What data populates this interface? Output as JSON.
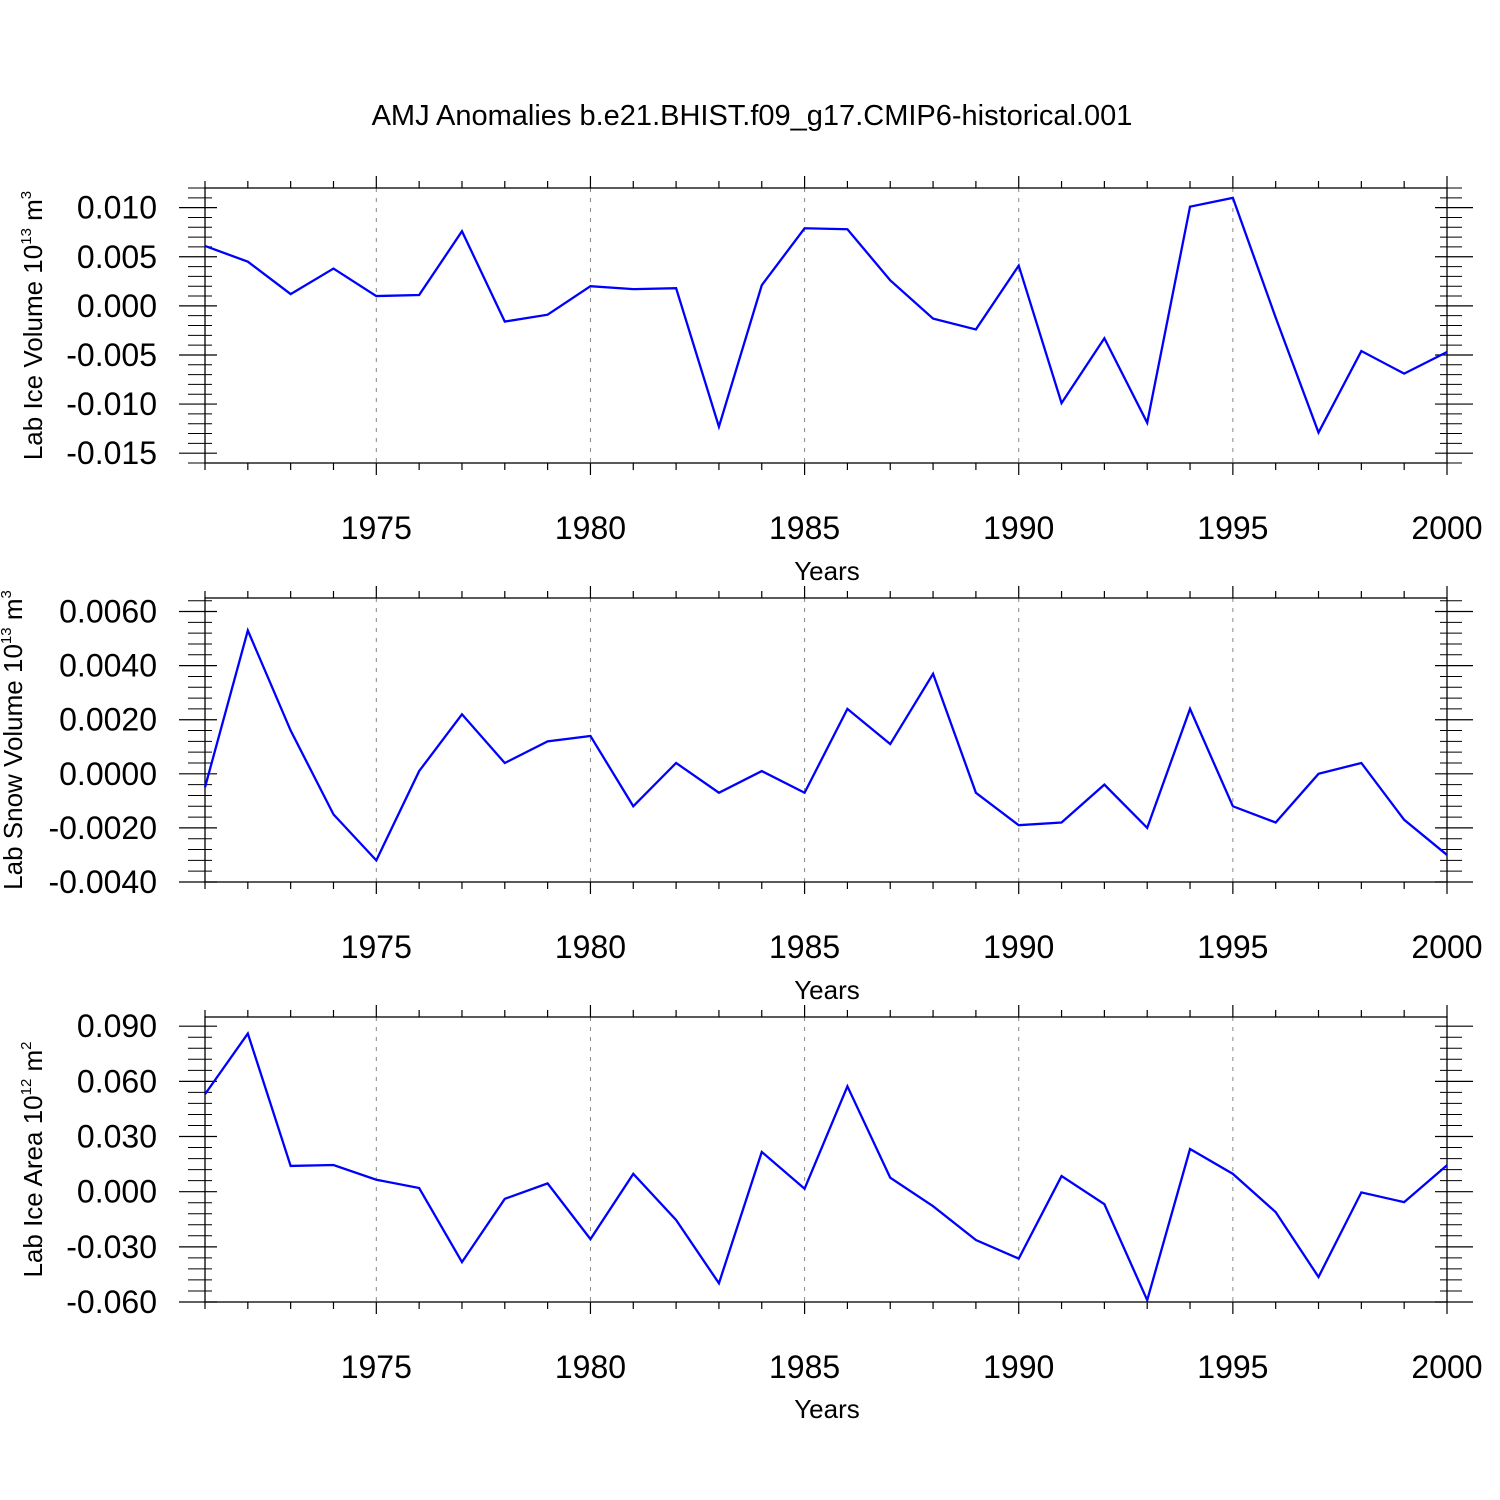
{
  "title": "AMJ Anomalies b.e21.BHIST.f09_g17.CMIP6-historical.001",
  "colors": {
    "line": "#0000ff",
    "axis": "#000000",
    "grid": "#888888"
  },
  "chart_data": [
    {
      "type": "line",
      "xlabel": "Years",
      "ylabel": {
        "base": "Lab Ice Volume 10",
        "exp": "13",
        "unit": " m",
        "unit_exp": "3"
      },
      "xlim": [
        1971,
        2000
      ],
      "ylim": [
        -0.016,
        0.012
      ],
      "xticks": [
        1975,
        1980,
        1985,
        1990,
        1995,
        2000
      ],
      "xtick_labels": [
        "1975",
        "1980",
        "1985",
        "1990",
        "1995",
        "2000"
      ],
      "yticks": [
        -0.015,
        -0.01,
        -0.005,
        0.0,
        0.005,
        0.01
      ],
      "ytick_labels": [
        "-0.015",
        "-0.010",
        "-0.005",
        "0.000",
        "0.005",
        "0.010"
      ],
      "grid": "vertical dashed at major x ticks",
      "x": [
        1971,
        1972,
        1973,
        1974,
        1975,
        1976,
        1977,
        1978,
        1979,
        1980,
        1981,
        1982,
        1983,
        1984,
        1985,
        1986,
        1987,
        1988,
        1989,
        1990,
        1991,
        1992,
        1993,
        1994,
        1995,
        1996,
        1997,
        1998,
        1999,
        2000
      ],
      "y": [
        0.0061,
        0.0045,
        0.0012,
        0.0038,
        0.001,
        0.0011,
        0.0076,
        -0.0016,
        -0.0009,
        0.002,
        0.0017,
        0.0018,
        -0.0123,
        0.0021,
        0.0079,
        0.0078,
        0.0026,
        -0.0013,
        -0.0024,
        0.0041,
        -0.0099,
        -0.0033,
        -0.0119,
        0.0101,
        0.011,
        -0.0012,
        -0.0129,
        -0.0046,
        -0.0069,
        -0.0047
      ]
    },
    {
      "type": "line",
      "xlabel": "Years",
      "ylabel": {
        "base": "Lab Snow Volume 10",
        "exp": "13",
        "unit": " m",
        "unit_exp": "3"
      },
      "xlim": [
        1971,
        2000
      ],
      "ylim": [
        -0.004,
        0.0065
      ],
      "xticks": [
        1975,
        1980,
        1985,
        1990,
        1995,
        2000
      ],
      "xtick_labels": [
        "1975",
        "1980",
        "1985",
        "1990",
        "1995",
        "2000"
      ],
      "yticks": [
        -0.004,
        -0.002,
        0.0,
        0.002,
        0.004,
        0.006
      ],
      "ytick_labels": [
        "-0.0040",
        "-0.0020",
        "0.0000",
        "0.0020",
        "0.0040",
        "0.0060"
      ],
      "grid": "vertical dashed at major x ticks",
      "x": [
        1971,
        1972,
        1973,
        1974,
        1975,
        1976,
        1977,
        1978,
        1979,
        1980,
        1981,
        1982,
        1983,
        1984,
        1985,
        1986,
        1987,
        1988,
        1989,
        1990,
        1991,
        1992,
        1993,
        1994,
        1995,
        1996,
        1997,
        1998,
        1999,
        2000
      ],
      "y": [
        -0.0005,
        0.0053,
        0.0016,
        -0.0015,
        -0.0032,
        0.0001,
        0.0022,
        0.0004,
        0.0012,
        0.0014,
        -0.0012,
        0.0004,
        -0.0007,
        0.0001,
        -0.0007,
        0.0024,
        0.0011,
        0.0037,
        -0.0007,
        -0.0019,
        -0.0018,
        -0.0004,
        -0.002,
        0.0024,
        -0.0012,
        -0.0018,
        0.0,
        0.0004,
        -0.0017,
        -0.003
      ]
    },
    {
      "type": "line",
      "xlabel": "Years",
      "ylabel": {
        "base": "Lab Ice Area 10",
        "exp": "12",
        "unit": " m",
        "unit_exp": "2"
      },
      "xlim": [
        1971,
        2000
      ],
      "ylim": [
        -0.06,
        0.095
      ],
      "xticks": [
        1975,
        1980,
        1985,
        1990,
        1995,
        2000
      ],
      "xtick_labels": [
        "1975",
        "1980",
        "1985",
        "1990",
        "1995",
        "2000"
      ],
      "yticks": [
        -0.06,
        -0.03,
        0.0,
        0.03,
        0.06,
        0.09
      ],
      "ytick_labels": [
        "-0.060",
        "-0.030",
        "0.000",
        "0.030",
        "0.060",
        "0.090"
      ],
      "grid": "vertical dashed at major x ticks",
      "x": [
        1971,
        1972,
        1973,
        1974,
        1975,
        1976,
        1977,
        1978,
        1979,
        1980,
        1981,
        1982,
        1983,
        1984,
        1985,
        1986,
        1987,
        1988,
        1989,
        1990,
        1991,
        1992,
        1993,
        1994,
        1995,
        1996,
        1997,
        1998,
        1999,
        2000
      ],
      "y": [
        0.053,
        0.086,
        0.014,
        0.0145,
        0.0065,
        0.002,
        -0.0383,
        -0.0039,
        0.0045,
        -0.0258,
        0.0097,
        -0.0154,
        -0.0498,
        0.0216,
        0.0016,
        0.0573,
        0.0076,
        -0.0079,
        -0.0263,
        -0.0364,
        0.0085,
        -0.0068,
        -0.059,
        0.0232,
        0.0097,
        -0.0111,
        -0.0464,
        -0.0004,
        -0.0057,
        0.0144
      ]
    }
  ]
}
